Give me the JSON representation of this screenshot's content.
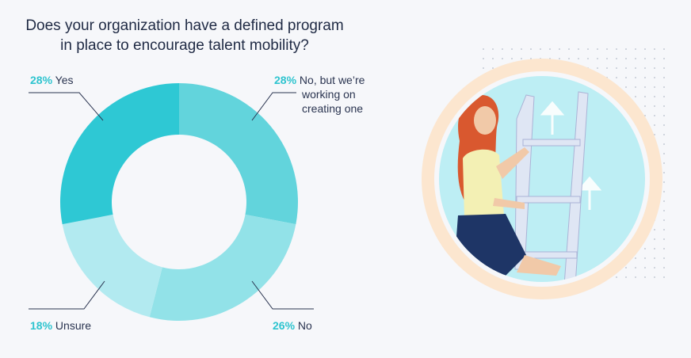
{
  "title_lines": [
    "Does your organization have a defined program",
    "in place to encourage talent mobility?"
  ],
  "chart_data": {
    "type": "pie",
    "title": "Does your organization have a defined program in place to encourage talent mobility?",
    "unit": "%",
    "slices": [
      {
        "label": "No, but we're working on creating one",
        "value": 28,
        "color": "#62d4dc"
      },
      {
        "label": "No",
        "value": 26,
        "color": "#92e2e8"
      },
      {
        "label": "Unsure",
        "value": 18,
        "color": "#b2eaf0"
      },
      {
        "label": "Yes",
        "value": 28,
        "color": "#2ec8d4"
      }
    ]
  },
  "labels": {
    "yes": {
      "pct": "28%",
      "text": "Yes"
    },
    "working": {
      "pct": "28%",
      "line1": "No, but we’re",
      "line2": "working on",
      "line3": "creating one"
    },
    "no": {
      "pct": "26%",
      "text": "No"
    },
    "unsure": {
      "pct": "18%",
      "text": "Unsure"
    }
  },
  "colors": {
    "accent": "#2ec4cf",
    "leader_line": "#2a3450",
    "illustration_ring": "#fbe3c9",
    "illustration_circle": "#bfeef4"
  },
  "illustration": {
    "description_icon": "woman-climbing-ladder-image"
  }
}
